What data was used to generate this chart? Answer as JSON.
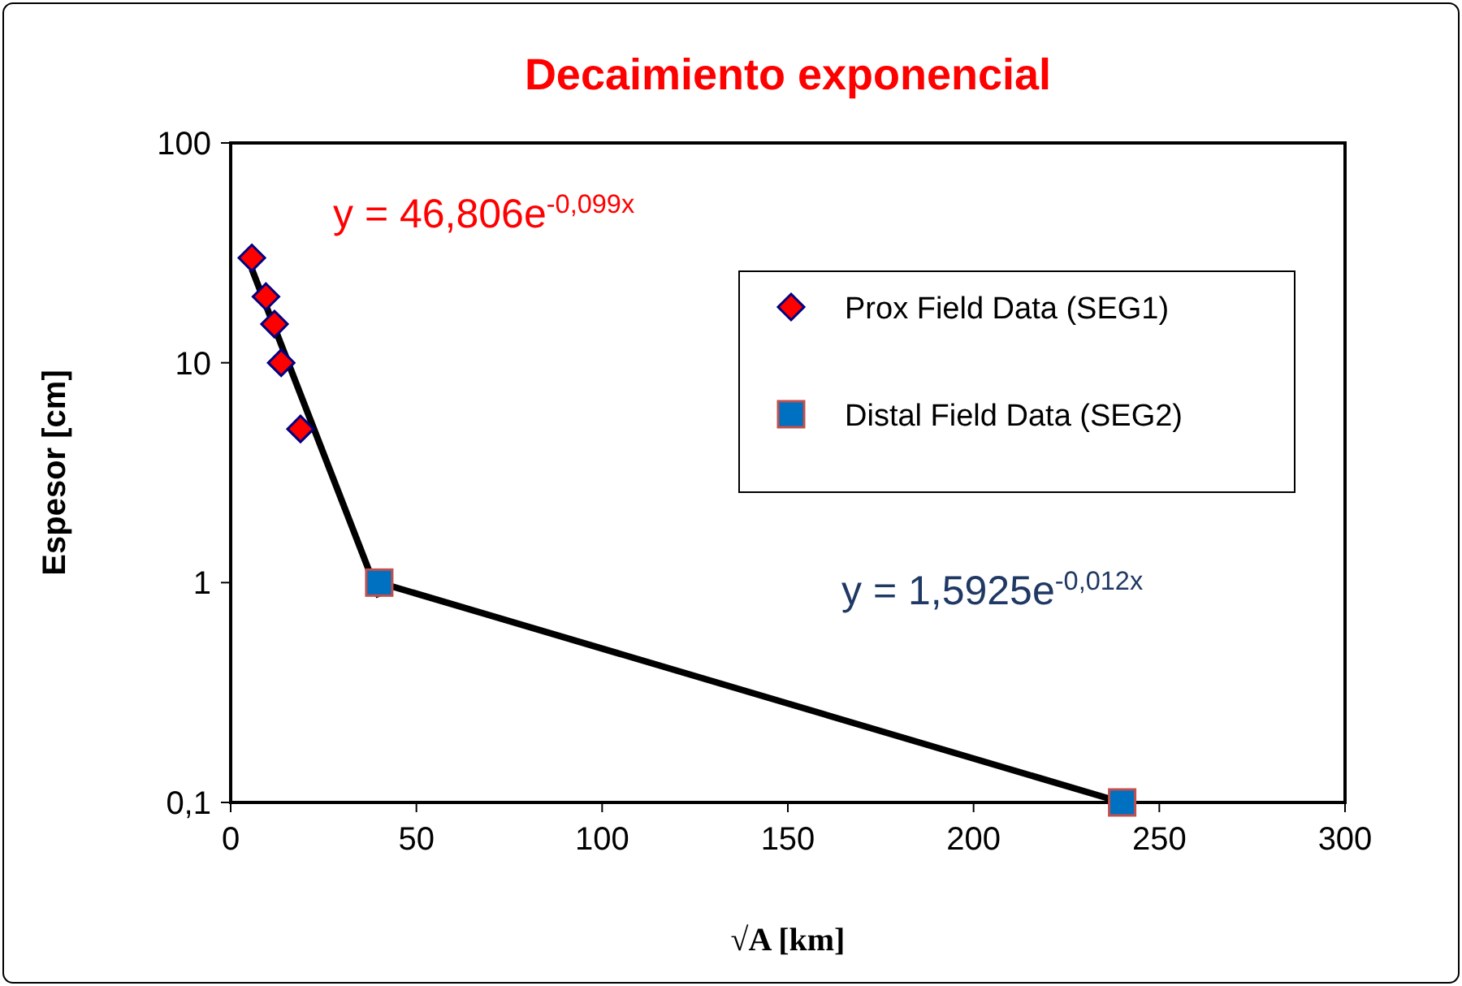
{
  "chart_data": {
    "type": "scatter",
    "title": "Decaimiento exponencial",
    "xlabel": "√A [km]",
    "ylabel": "Espesor [cm]",
    "log": "y",
    "xlim": [
      0,
      300
    ],
    "xticks": [
      0,
      50,
      100,
      150,
      200,
      250,
      300
    ],
    "ylim": [
      0.1,
      100
    ],
    "yticks": [
      {
        "value": 0.1,
        "label": "0,1"
      },
      1,
      10,
      100
    ],
    "grid": false,
    "legend": "top right",
    "annotations": [
      "y = 46,806e$^{-0,099x}$",
      "y = 1,5925e$^{-0,012x}$"
    ],
    "series": [
      {
        "type": "line",
        "color": "#000000",
        "marker": "none",
        "line_style": "solid",
        "x": [
          5.7,
          40
        ],
        "values": [
          26.7,
          0.86
        ]
      },
      {
        "type": "line",
        "color": "#000000",
        "marker": "none",
        "line_style": "solid",
        "x": [
          40,
          240
        ],
        "values": [
          1,
          0.1
        ]
      },
      {
        "name": "Prox Field Data (SEG1)",
        "color": "#ff0000",
        "marker": "diamond",
        "x": [
          5.7,
          9.5,
          11.8,
          13.6,
          18.8
        ],
        "values": [
          30,
          20,
          15,
          10,
          5
        ]
      },
      {
        "name": "Distal Field Data (SEG2)",
        "color": "#0070c0",
        "marker": "square",
        "x": [
          40,
          240
        ],
        "values": [
          1,
          0.1
        ]
      }
    ]
  }
}
